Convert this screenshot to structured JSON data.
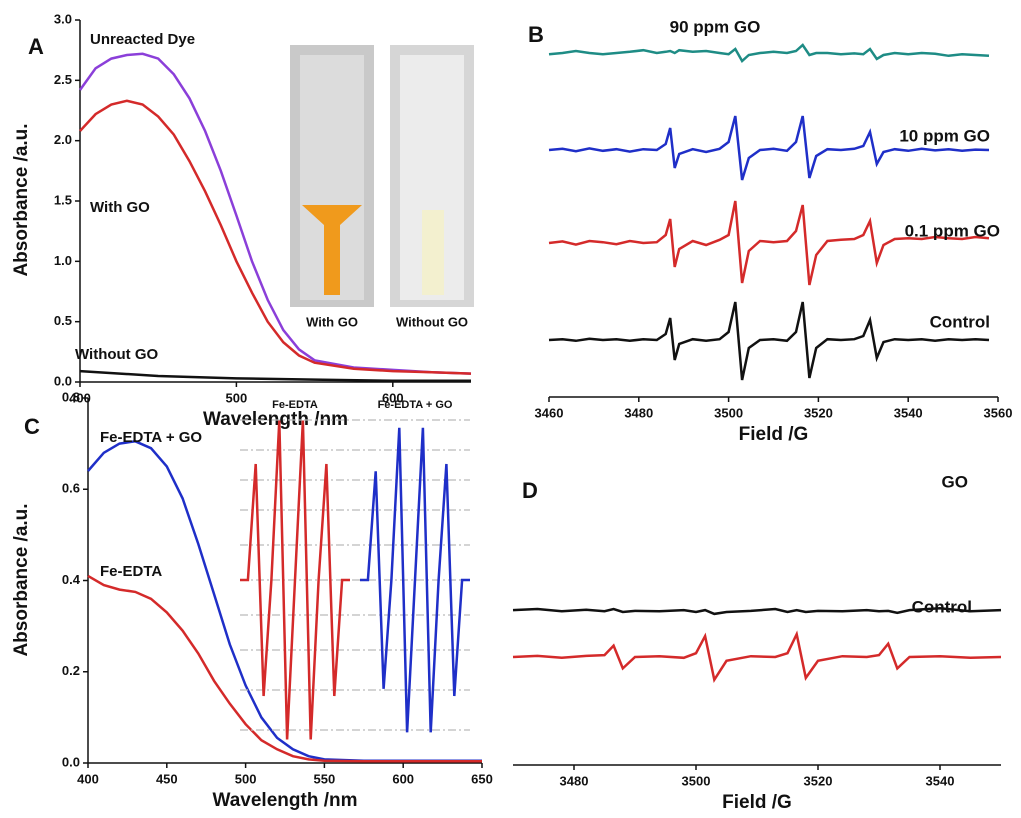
{
  "chart_data": [
    {
      "type": "line",
      "label": "A",
      "xlabel": "Wavelength /nm",
      "ylabel": "Absorbance /a.u.",
      "xlim": [
        400,
        650
      ],
      "xticks": [
        400,
        500,
        600
      ],
      "ylim": [
        0,
        3
      ],
      "yticks": [
        {
          "value": 0,
          "label": "0.0"
        },
        0.5,
        {
          "value": 1,
          "label": "1.0"
        },
        1.5,
        {
          "value": 2,
          "label": "2.0"
        },
        2.5,
        {
          "value": 3,
          "label": "3.0"
        }
      ],
      "photo_labels": [
        "With GO",
        "Without GO"
      ],
      "series": [
        {
          "name": "Unreacted Dye",
          "color": "#8b3fd9",
          "x": [
            400,
            410,
            420,
            430,
            440,
            450,
            460,
            470,
            480,
            490,
            500,
            510,
            520,
            530,
            540,
            550,
            575,
            600,
            625,
            650
          ],
          "values": [
            2.42,
            2.6,
            2.68,
            2.71,
            2.72,
            2.68,
            2.55,
            2.35,
            2.08,
            1.75,
            1.38,
            1.0,
            0.68,
            0.43,
            0.27,
            0.18,
            0.12,
            0.1,
            0.08,
            0.07
          ]
        },
        {
          "name": "With GO",
          "color": "#d42a2a",
          "x": [
            400,
            410,
            420,
            430,
            440,
            450,
            460,
            470,
            480,
            490,
            500,
            510,
            520,
            530,
            540,
            550,
            575,
            600,
            625,
            650
          ],
          "values": [
            2.08,
            2.22,
            2.3,
            2.33,
            2.3,
            2.2,
            2.05,
            1.83,
            1.58,
            1.3,
            1.0,
            0.74,
            0.5,
            0.33,
            0.22,
            0.16,
            0.11,
            0.09,
            0.08,
            0.07
          ]
        },
        {
          "name": "Without GO",
          "color": "#111111",
          "x": [
            400,
            450,
            500,
            550,
            600,
            650
          ],
          "values": [
            0.09,
            0.05,
            0.03,
            0.02,
            0.01,
            0.01
          ]
        }
      ]
    },
    {
      "type": "spectrum",
      "label": "B",
      "xlabel": "Field /G",
      "xlim": [
        3460,
        3560
      ],
      "xticks": [
        3460,
        3480,
        3500,
        3520,
        3540,
        3560
      ],
      "x": [
        3460,
        3463,
        3466,
        3469,
        3472,
        3475,
        3478,
        3481,
        3484,
        3486,
        3487,
        3488,
        3489,
        3492,
        3495,
        3498,
        3500,
        3501.5,
        3503,
        3504.5,
        3507,
        3510,
        3513,
        3515,
        3516.5,
        3518,
        3519.5,
        3522,
        3525,
        3528,
        3530,
        3531.5,
        3533,
        3534.5,
        3537,
        3540,
        3543,
        3546,
        3549,
        3552,
        3555,
        3558
      ],
      "series": [
        {
          "name": "90 ppm GO",
          "color": "#1e8c85",
          "values": [
            0.02,
            0.05,
            0.1,
            0.05,
            0.02,
            0.05,
            0.08,
            0.12,
            0.05,
            0.08,
            0.1,
            0.05,
            0.12,
            0.08,
            0.1,
            0.05,
            0.02,
            0.15,
            -0.15,
            0,
            0.05,
            0.08,
            0.05,
            0.1,
            0.25,
            0,
            0.05,
            0.05,
            0.02,
            0.04,
            0.02,
            0.15,
            -0.1,
            0,
            0.05,
            0.02,
            0.05,
            0.03,
            -0.02,
            0.02,
            0,
            -0.02
          ]
        },
        {
          "name": "10 ppm GO",
          "color": "#1f2fc8",
          "values": [
            0,
            0.03,
            -0.03,
            0.04,
            -0.02,
            0.02,
            -0.04,
            0.02,
            0,
            0.15,
            0.55,
            -0.45,
            -0.1,
            0.02,
            -0.05,
            0.03,
            0.2,
            0.85,
            -0.75,
            -0.2,
            0,
            0.03,
            -0.02,
            0.2,
            0.85,
            -0.7,
            -0.15,
            0.02,
            0,
            0.03,
            0.1,
            0.45,
            -0.35,
            -0.05,
            0.02,
            -0.02,
            0.03,
            -0.01,
            0.02,
            -0.02,
            0.01,
            0
          ]
        },
        {
          "name": "0.1 ppm GO",
          "color": "#d42a2a",
          "values": [
            0,
            0.04,
            -0.04,
            0.05,
            0.02,
            -0.03,
            0.05,
            0,
            0.02,
            0.2,
            0.6,
            -0.6,
            -0.15,
            0.05,
            -0.05,
            0.08,
            0.2,
            1.05,
            -1.0,
            -0.2,
            0.05,
            0.02,
            0.05,
            0.3,
            0.95,
            -1.05,
            -0.3,
            0.05,
            0.08,
            0.1,
            0.2,
            0.55,
            -0.5,
            -0.05,
            0.1,
            0.12,
            0.1,
            0.15,
            0.12,
            0.1,
            0.15,
            0.12
          ]
        },
        {
          "name": "Control",
          "color": "#111111",
          "values": [
            0,
            0.02,
            -0.02,
            0.03,
            0,
            0.02,
            -0.02,
            0.02,
            0,
            0.15,
            0.55,
            -0.5,
            -0.1,
            0.02,
            -0.02,
            0.02,
            0.2,
            0.95,
            -1.0,
            -0.2,
            0,
            0.02,
            -0.02,
            0.2,
            0.95,
            -0.95,
            -0.2,
            0.02,
            0,
            0.02,
            0.1,
            0.5,
            -0.45,
            -0.05,
            0.02,
            0,
            0.02,
            -0.02,
            0.02,
            0,
            0.02,
            0
          ]
        }
      ]
    },
    {
      "type": "line",
      "label": "C",
      "xlabel": "Wavelength /nm",
      "ylabel": "Absorbance /a.u.",
      "xlim": [
        400,
        650
      ],
      "xticks": [
        400,
        450,
        500,
        550,
        600,
        650
      ],
      "ylim": [
        0,
        0.8
      ],
      "yticks": [
        {
          "value": 0,
          "label": "0.0"
        },
        0.2,
        0.4,
        0.6,
        0.8
      ],
      "series": [
        {
          "name": "Fe-EDTA + GO",
          "color": "#1f2fc8",
          "x": [
            400,
            410,
            420,
            430,
            440,
            450,
            460,
            470,
            480,
            490,
            500,
            510,
            520,
            530,
            540,
            550,
            575,
            600,
            650
          ],
          "values": [
            0.64,
            0.68,
            0.7,
            0.705,
            0.69,
            0.65,
            0.58,
            0.48,
            0.37,
            0.26,
            0.17,
            0.1,
            0.055,
            0.03,
            0.015,
            0.008,
            0.005,
            0.005,
            0.005
          ]
        },
        {
          "name": "Fe-EDTA",
          "color": "#d42a2a",
          "x": [
            400,
            410,
            420,
            430,
            440,
            450,
            460,
            470,
            480,
            490,
            500,
            510,
            520,
            530,
            540,
            550,
            575,
            600,
            650
          ],
          "values": [
            0.41,
            0.39,
            0.38,
            0.375,
            0.36,
            0.33,
            0.29,
            0.24,
            0.18,
            0.13,
            0.085,
            0.05,
            0.03,
            0.015,
            0.008,
            0.005,
            0.004,
            0.004,
            0.004
          ]
        }
      ],
      "inset": {
        "series": [
          {
            "name": "Fe-EDTA",
            "color": "#d42a2a",
            "values": [
              0,
              0,
              0.8,
              -0.8,
              0,
              1.1,
              -1.1,
              0,
              1.1,
              -1.1,
              0,
              0.8,
              -0.8,
              0,
              0
            ]
          },
          {
            "name": "Fe-EDTA + GO",
            "color": "#1f2fc8",
            "values": [
              0,
              0,
              0.75,
              -0.75,
              0,
              1.05,
              -1.05,
              0,
              1.05,
              -1.05,
              0,
              0.8,
              -0.8,
              0,
              0
            ]
          }
        ]
      }
    },
    {
      "type": "spectrum",
      "label": "D",
      "xlabel": "Field /G",
      "xlim": [
        3470,
        3550
      ],
      "xticks": [
        3480,
        3500,
        3520,
        3540
      ],
      "x": [
        3470,
        3474,
        3478,
        3482,
        3485,
        3486.5,
        3488,
        3490,
        3494,
        3498,
        3500,
        3501.5,
        3503,
        3505,
        3509,
        3513,
        3515,
        3516.5,
        3518,
        3520,
        3524,
        3528,
        3530,
        3531.5,
        3533,
        3535,
        3540,
        3545,
        3550
      ],
      "series": [
        {
          "name": "GO",
          "color": "#111111",
          "values": [
            0.05,
            0.08,
            0.02,
            0.06,
            0.02,
            0.08,
            0,
            0.03,
            0.02,
            0.05,
            0,
            0.05,
            -0.05,
            0,
            0.03,
            0.08,
            0,
            0.05,
            0,
            0.03,
            0.02,
            0.05,
            0.02,
            0.03,
            -0.02,
            0.05,
            0.1,
            0.02,
            0.05
          ]
        },
        {
          "name": "Control",
          "color": "#d42a2a",
          "values": [
            0,
            0.03,
            -0.02,
            0.03,
            0.05,
            0.3,
            -0.3,
            0,
            0.02,
            -0.02,
            0.1,
            0.55,
            -0.6,
            -0.1,
            0.02,
            0,
            0.1,
            0.6,
            -0.55,
            -0.1,
            0.02,
            0,
            0.05,
            0.35,
            -0.3,
            0,
            0.02,
            -0.02,
            0
          ]
        }
      ]
    }
  ]
}
